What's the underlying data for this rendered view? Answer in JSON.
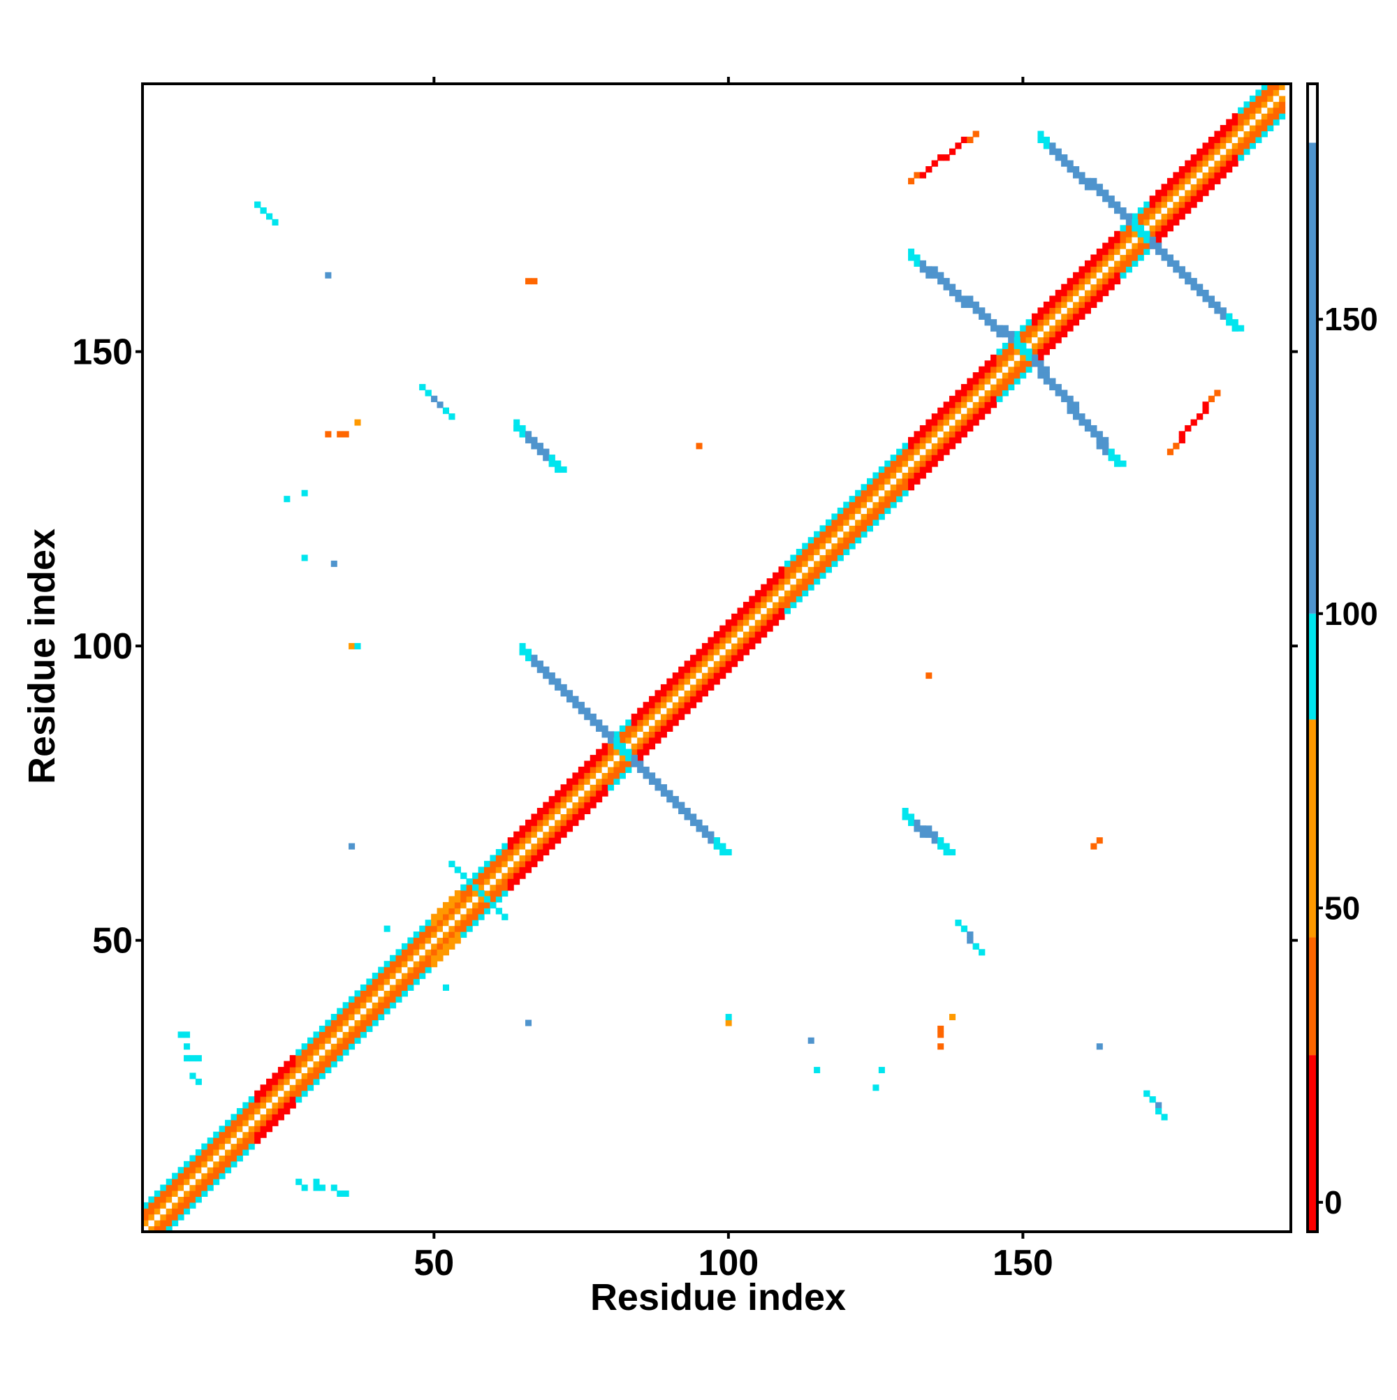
{
  "chart_data": {
    "type": "heatmap",
    "xlabel": "Residue index",
    "ylabel": "Residue index",
    "xlim": [
      1,
      195
    ],
    "ylim": [
      1,
      195
    ],
    "x_ticks": [
      50,
      100,
      150
    ],
    "y_ticks": [
      50,
      100,
      150
    ],
    "x_tick_labels": [
      "50",
      "100",
      "150"
    ],
    "y_tick_labels": [
      "50",
      "100",
      "150"
    ],
    "grid": false,
    "colorbar": {
      "range": [
        -5,
        190
      ],
      "ticks": [
        0,
        50,
        100,
        150
      ],
      "tick_labels": [
        "0",
        "50",
        "100",
        "150"
      ],
      "bands": [
        {
          "from": -5,
          "to": 25,
          "color": "#ff0000"
        },
        {
          "from": 25,
          "to": 45,
          "color": "#ff6600"
        },
        {
          "from": 45,
          "to": 82,
          "color": "#ff9900"
        },
        {
          "from": 82,
          "to": 100,
          "color": "#00e5ee"
        },
        {
          "from": 100,
          "to": 180,
          "color": "#4f94cd"
        },
        {
          "from": 180,
          "to": 190,
          "color": "#ffffff"
        }
      ]
    },
    "diagonal": {
      "from": 1,
      "to": 195,
      "width": 4,
      "segments": [
        {
          "from": 1,
          "to": 10,
          "center": "#ff9900",
          "inner": "#ff6600",
          "outer": "#00e5ee"
        },
        {
          "from": 10,
          "to": 20,
          "center": "#ff9900",
          "inner": "#ff6600",
          "outer": "#00e5ee"
        },
        {
          "from": 20,
          "to": 27,
          "center": "#ff9900",
          "inner": "#ff6600",
          "outer": "#ff0000"
        },
        {
          "from": 27,
          "to": 42,
          "center": "#ff9900",
          "inner": "#ff6600",
          "outer": "#00e5ee"
        },
        {
          "from": 42,
          "to": 50,
          "center": "#ff9900",
          "inner": "#ff6600",
          "outer": "#00e5ee"
        },
        {
          "from": 50,
          "to": 55,
          "center": "#ff9900",
          "inner": "#ff6600",
          "outer": "#ff9900"
        },
        {
          "from": 55,
          "to": 63,
          "center": "#ff9900",
          "inner": "#ff6600",
          "outer": "#00e5ee"
        },
        {
          "from": 63,
          "to": 80,
          "center": "#ff9900",
          "inner": "#ff6600",
          "outer": "#ff0000"
        },
        {
          "from": 80,
          "to": 84,
          "center": "#ff9900",
          "inner": "#ff6600",
          "outer": "#00e5ee"
        },
        {
          "from": 84,
          "to": 92,
          "center": "#ff9900",
          "inner": "#ff6600",
          "outer": "#ff0000"
        },
        {
          "from": 92,
          "to": 110,
          "center": "#ff9900",
          "inner": "#ff6600",
          "outer": "#ff0000"
        },
        {
          "from": 110,
          "to": 127,
          "center": "#ff9900",
          "inner": "#ff6600",
          "outer": "#00e5ee"
        },
        {
          "from": 127,
          "to": 131,
          "center": "#ff9900",
          "inner": "#ff6600",
          "outer": "#00e5ee"
        },
        {
          "from": 131,
          "to": 146,
          "center": "#ff9900",
          "inner": "#ff6600",
          "outer": "#ff0000"
        },
        {
          "from": 146,
          "to": 152,
          "center": "#ff9900",
          "inner": "#ff6600",
          "outer": "#00e5ee"
        },
        {
          "from": 152,
          "to": 161,
          "center": "#ff9900",
          "inner": "#ff6600",
          "outer": "#ff0000"
        },
        {
          "from": 161,
          "to": 167,
          "center": "#ff9900",
          "inner": "#ff6600",
          "outer": "#ff0000"
        },
        {
          "from": 167,
          "to": 172,
          "center": "#ff9900",
          "inner": "#ff6600",
          "outer": "#00e5ee"
        },
        {
          "from": 172,
          "to": 187,
          "center": "#ff9900",
          "inner": "#ff6600",
          "outer": "#ff0000"
        },
        {
          "from": 187,
          "to": 195,
          "center": "#ff9900",
          "inner": "#ff6600",
          "outer": "#00e5ee"
        }
      ]
    },
    "contact_lines": [
      {
        "x1": 65,
        "y1": 99,
        "x2": 82,
        "y2": 82,
        "color": "#4f94cd",
        "edge_color": "#00e5ee",
        "width": 2
      },
      {
        "x1": 82,
        "y1": 82,
        "x2": 99,
        "y2": 65,
        "color": "#4f94cd",
        "edge_color": "#00e5ee",
        "width": 2
      },
      {
        "x1": 131,
        "y1": 166,
        "x2": 150,
        "y2": 150,
        "color": "#4f94cd",
        "edge_color": "#00e5ee",
        "width": 2
      },
      {
        "x1": 150,
        "y1": 150,
        "x2": 166,
        "y2": 131,
        "color": "#4f94cd",
        "edge_color": "#00e5ee",
        "width": 2
      },
      {
        "x1": 153,
        "y1": 186,
        "x2": 170,
        "y2": 170,
        "color": "#4f94cd",
        "edge_color": "#00e5ee",
        "width": 2
      },
      {
        "x1": 170,
        "y1": 170,
        "x2": 186,
        "y2": 154,
        "color": "#4f94cd",
        "edge_color": "#00e5ee",
        "width": 2
      },
      {
        "x1": 131,
        "y1": 179,
        "x2": 142,
        "y2": 187,
        "color": "#ff0000",
        "edge_color": "#ff6600",
        "width": 1
      },
      {
        "x1": 175,
        "y1": 133,
        "x2": 183,
        "y2": 143,
        "color": "#ff0000",
        "edge_color": "#ff6600",
        "width": 1
      },
      {
        "x1": 64,
        "y1": 137,
        "x2": 71,
        "y2": 130,
        "color": "#4f94cd",
        "edge_color": "#00e5ee",
        "width": 2
      },
      {
        "x1": 130,
        "y1": 71,
        "x2": 137,
        "y2": 65,
        "color": "#4f94cd",
        "edge_color": "#00e5ee",
        "width": 2
      },
      {
        "x1": 48,
        "y1": 144,
        "x2": 53,
        "y2": 139,
        "color": "#4f94cd",
        "edge_color": "#00e5ee",
        "width": 1
      },
      {
        "x1": 139,
        "y1": 53,
        "x2": 143,
        "y2": 48,
        "color": "#4f94cd",
        "edge_color": "#00e5ee",
        "width": 1
      },
      {
        "x1": 20,
        "y1": 175,
        "x2": 23,
        "y2": 172,
        "color": "#4f94cd",
        "edge_color": "#00e5ee",
        "width": 1
      },
      {
        "x1": 171,
        "y1": 24,
        "x2": 174,
        "y2": 20,
        "color": "#4f94cd",
        "edge_color": "#00e5ee",
        "width": 1
      },
      {
        "x1": 53,
        "y1": 63,
        "x2": 57,
        "y2": 59,
        "color": "#00e5ee",
        "edge_color": "#00e5ee",
        "width": 1
      },
      {
        "x1": 58,
        "y1": 58,
        "x2": 62,
        "y2": 54,
        "color": "#00e5ee",
        "edge_color": "#00e5ee",
        "width": 1
      }
    ],
    "contact_points": [
      {
        "x": 32,
        "y": 163,
        "color": "#4f94cd"
      },
      {
        "x": 67,
        "y": 162,
        "color": "#ff6600"
      },
      {
        "x": 66,
        "y": 162,
        "color": "#ff6600"
      },
      {
        "x": 32,
        "y": 136,
        "color": "#ff6600"
      },
      {
        "x": 34,
        "y": 136,
        "color": "#ff6600"
      },
      {
        "x": 35,
        "y": 136,
        "color": "#ff6600"
      },
      {
        "x": 37,
        "y": 138,
        "color": "#ff9900"
      },
      {
        "x": 95,
        "y": 134,
        "color": "#ff6600"
      },
      {
        "x": 25,
        "y": 125,
        "color": "#00e5ee"
      },
      {
        "x": 28,
        "y": 126,
        "color": "#00e5ee"
      },
      {
        "x": 28,
        "y": 115,
        "color": "#00e5ee"
      },
      {
        "x": 33,
        "y": 114,
        "color": "#4f94cd"
      },
      {
        "x": 36,
        "y": 100,
        "color": "#ff9900"
      },
      {
        "x": 37,
        "y": 100,
        "color": "#00e5ee"
      },
      {
        "x": 134,
        "y": 95,
        "color": "#ff6600"
      },
      {
        "x": 36,
        "y": 66,
        "color": "#4f94cd"
      },
      {
        "x": 163,
        "y": 67,
        "color": "#ff6600"
      },
      {
        "x": 162,
        "y": 66,
        "color": "#ff6600"
      },
      {
        "x": 42,
        "y": 52,
        "color": "#00e5ee"
      },
      {
        "x": 52,
        "y": 42,
        "color": "#00e5ee"
      },
      {
        "x": 66,
        "y": 36,
        "color": "#4f94cd"
      },
      {
        "x": 100,
        "y": 36,
        "color": "#ff9900"
      },
      {
        "x": 100,
        "y": 37,
        "color": "#00e5ee"
      },
      {
        "x": 114,
        "y": 33,
        "color": "#4f94cd"
      },
      {
        "x": 115,
        "y": 28,
        "color": "#00e5ee"
      },
      {
        "x": 125,
        "y": 25,
        "color": "#00e5ee"
      },
      {
        "x": 126,
        "y": 28,
        "color": "#00e5ee"
      },
      {
        "x": 136,
        "y": 32,
        "color": "#ff6600"
      },
      {
        "x": 136,
        "y": 34,
        "color": "#ff6600"
      },
      {
        "x": 136,
        "y": 35,
        "color": "#ff6600"
      },
      {
        "x": 138,
        "y": 37,
        "color": "#ff9900"
      },
      {
        "x": 163,
        "y": 32,
        "color": "#4f94cd"
      },
      {
        "x": 7,
        "y": 34,
        "color": "#00e5ee"
      },
      {
        "x": 8,
        "y": 34,
        "color": "#00e5ee"
      },
      {
        "x": 8,
        "y": 32,
        "color": "#00e5ee"
      },
      {
        "x": 8,
        "y": 30,
        "color": "#00e5ee"
      },
      {
        "x": 9,
        "y": 30,
        "color": "#00e5ee"
      },
      {
        "x": 10,
        "y": 30,
        "color": "#00e5ee"
      },
      {
        "x": 9,
        "y": 27,
        "color": "#00e5ee"
      },
      {
        "x": 10,
        "y": 26,
        "color": "#00e5ee"
      },
      {
        "x": 27,
        "y": 9,
        "color": "#00e5ee"
      },
      {
        "x": 28,
        "y": 8,
        "color": "#00e5ee"
      },
      {
        "x": 30,
        "y": 8,
        "color": "#00e5ee"
      },
      {
        "x": 30,
        "y": 9,
        "color": "#00e5ee"
      },
      {
        "x": 31,
        "y": 8,
        "color": "#00e5ee"
      },
      {
        "x": 33,
        "y": 8,
        "color": "#00e5ee"
      },
      {
        "x": 34,
        "y": 7,
        "color": "#00e5ee"
      },
      {
        "x": 35,
        "y": 7,
        "color": "#00e5ee"
      }
    ]
  }
}
